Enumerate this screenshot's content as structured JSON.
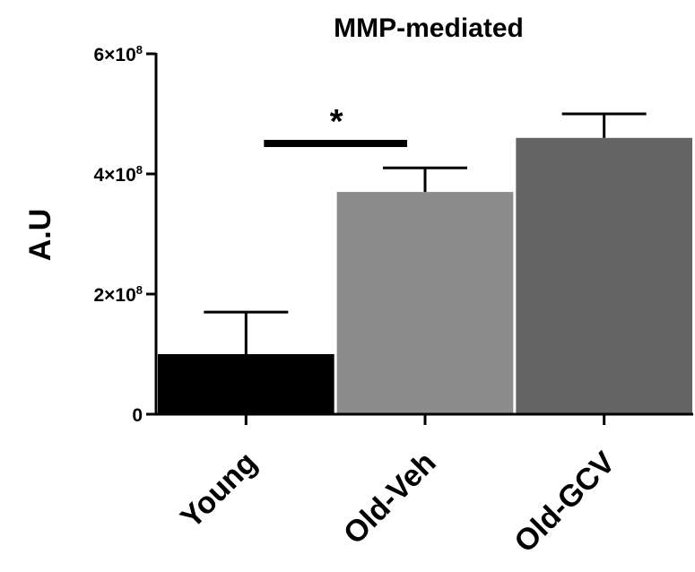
{
  "chart_data": {
    "type": "bar",
    "title": "MMP-mediated",
    "ylabel": "A.U",
    "xlabel": "",
    "categories": [
      "Young",
      "Old-Veh",
      "Old-GCV"
    ],
    "values": [
      1.0,
      3.7,
      4.6
    ],
    "errors": [
      0.7,
      0.4,
      0.4
    ],
    "ylim": [
      0,
      6
    ],
    "yticks": [
      {
        "value": 0,
        "base": "0",
        "exp": ""
      },
      {
        "value": 2,
        "base": "2×10",
        "exp": "8"
      },
      {
        "value": 4,
        "base": "4×10",
        "exp": "8"
      },
      {
        "value": 6,
        "base": "6×10",
        "exp": "8"
      }
    ],
    "colors": [
      "#000000",
      "#8c8c8c",
      "#646464"
    ],
    "significance": {
      "between": [
        "Young",
        "Old-Veh"
      ],
      "label": "*"
    },
    "grid": false,
    "legend": "none"
  }
}
